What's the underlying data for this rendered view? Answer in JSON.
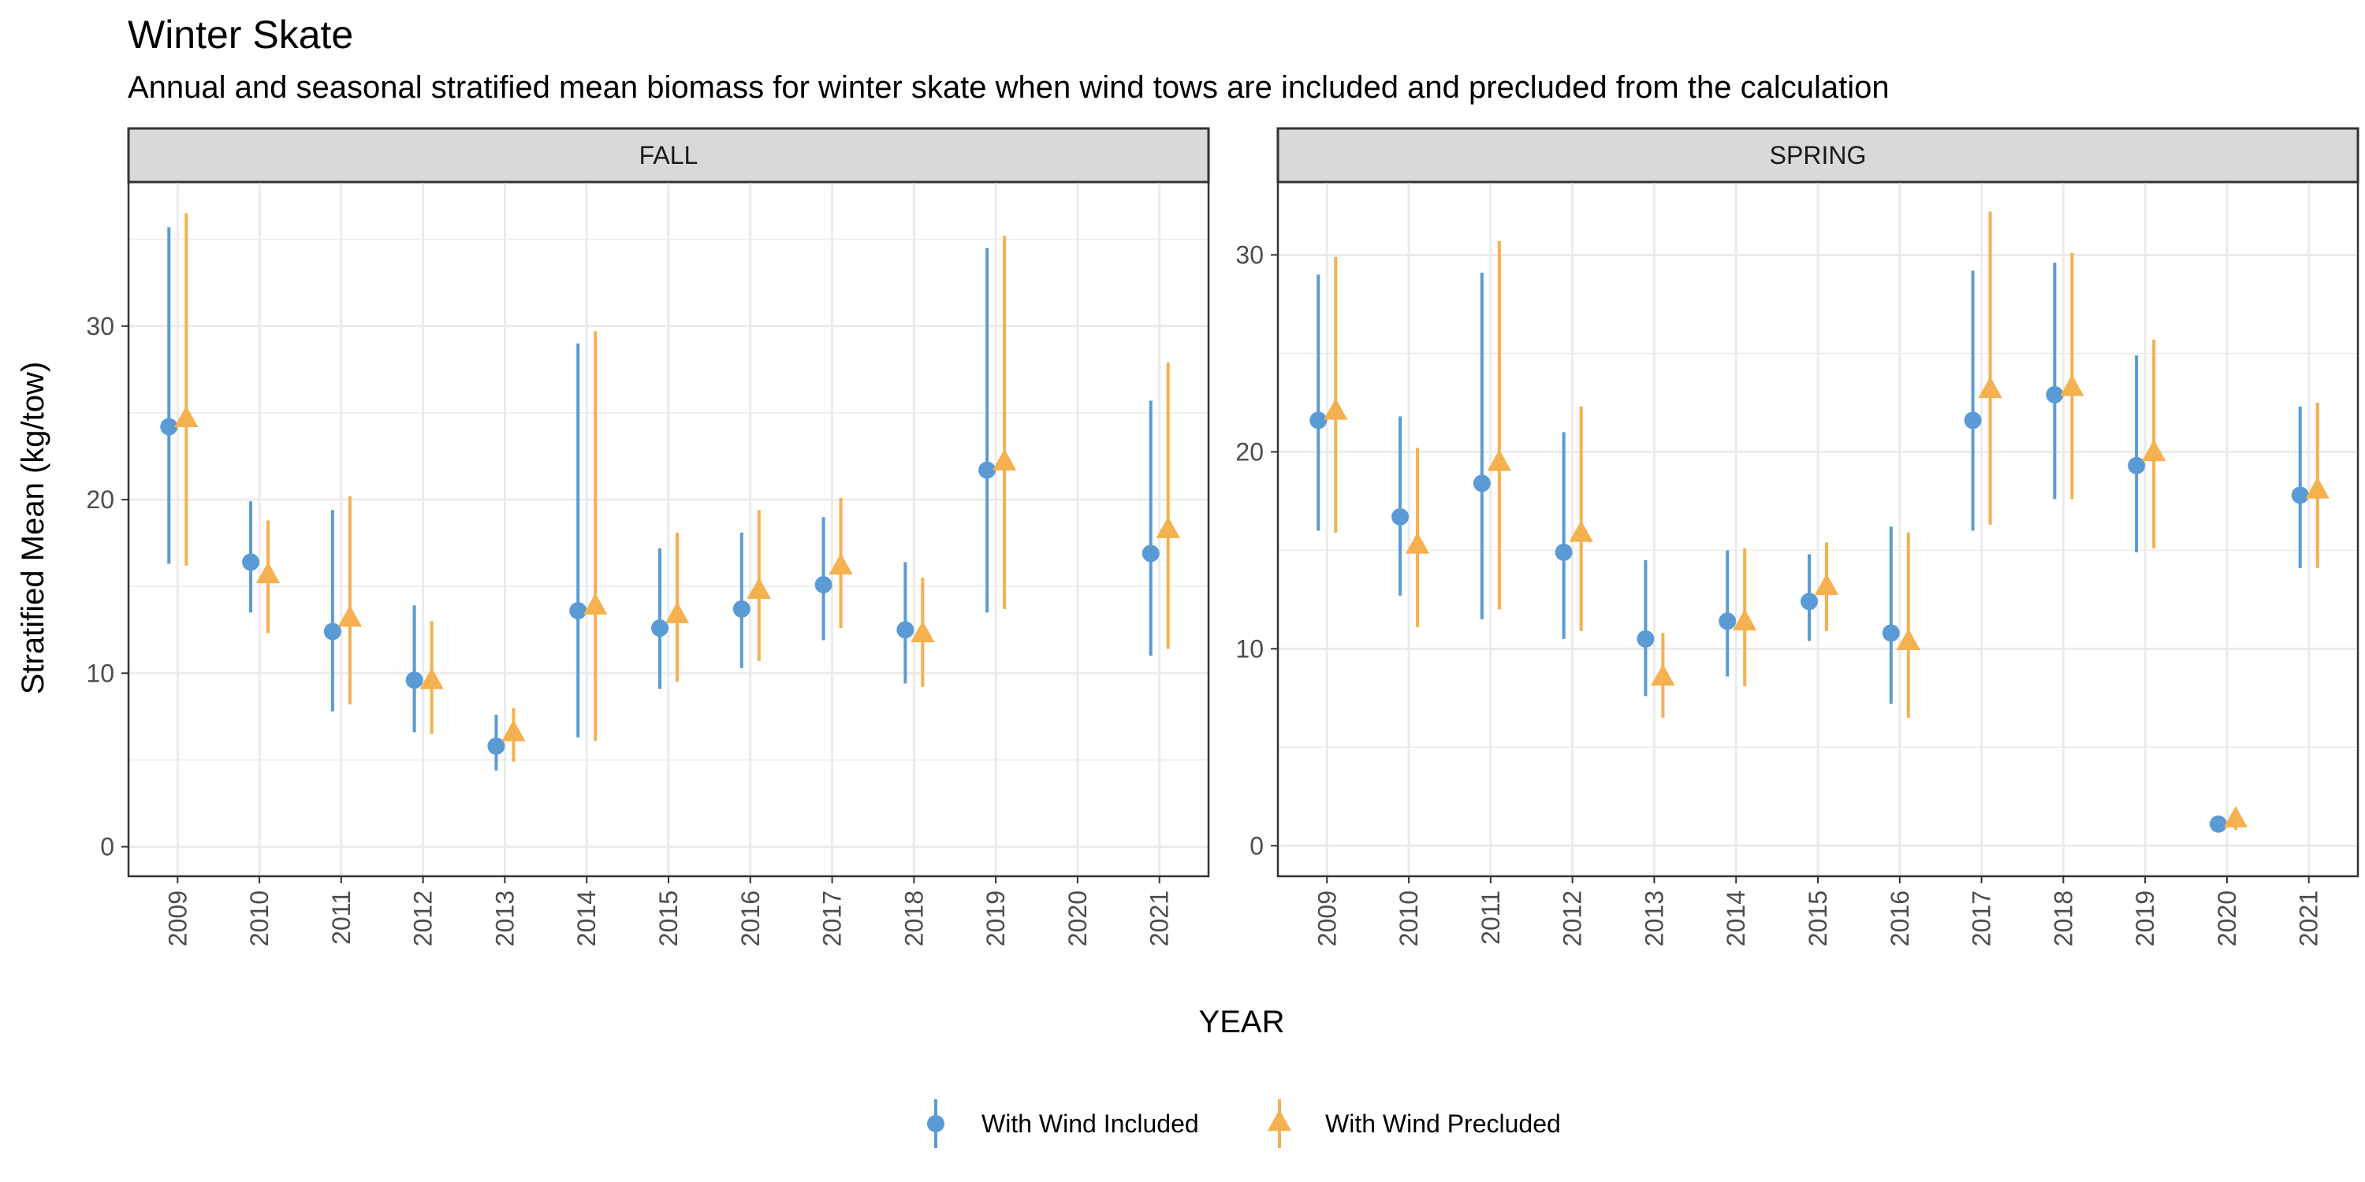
{
  "title": "Winter Skate",
  "subtitle": "Annual and seasonal stratified mean biomass for winter skate when wind tows are included and precluded from the calculation",
  "colors": {
    "included": "#5b9bd5",
    "precluded": "#f5b04f"
  },
  "chart_data": {
    "type": "scatter",
    "xlabel": "YEAR",
    "ylabel": "Stratified Mean (kg/tow)",
    "categories": [
      "2009",
      "2010",
      "2011",
      "2012",
      "2013",
      "2014",
      "2015",
      "2016",
      "2017",
      "2018",
      "2019",
      "2020",
      "2021"
    ],
    "legend": {
      "placement": "bottom",
      "entries": [
        {
          "name": "With Wind Included",
          "shape": "circle",
          "color": "#5b9bd5"
        },
        {
          "name": "With Wind Precluded",
          "shape": "triangle",
          "color": "#f5b04f"
        }
      ]
    },
    "grid": true,
    "panels": [
      {
        "name": "FALL",
        "ylim": [
          -1.7,
          38.3
        ],
        "yticks": [
          0,
          10,
          20,
          30
        ],
        "series": [
          {
            "name": "With Wind Included",
            "mean": [
              24.2,
              16.4,
              12.4,
              9.6,
              5.8,
              13.6,
              12.6,
              13.7,
              15.1,
              12.5,
              21.7,
              null,
              16.9
            ],
            "lower": [
              16.3,
              13.5,
              7.8,
              6.6,
              4.4,
              6.3,
              9.1,
              10.3,
              11.9,
              9.4,
              13.5,
              null,
              11.0
            ],
            "upper": [
              35.7,
              19.9,
              19.4,
              13.9,
              7.6,
              29.0,
              17.2,
              18.1,
              19.0,
              16.4,
              34.5,
              null,
              25.7
            ]
          },
          {
            "name": "With Wind Precluded",
            "mean": [
              24.6,
              15.6,
              13.1,
              9.5,
              6.5,
              13.8,
              13.3,
              14.7,
              16.1,
              12.2,
              22.1,
              null,
              18.2
            ],
            "lower": [
              16.2,
              12.3,
              8.2,
              6.5,
              4.9,
              6.1,
              9.5,
              10.7,
              12.6,
              9.2,
              13.7,
              null,
              11.4
            ],
            "upper": [
              36.5,
              18.8,
              20.2,
              13.0,
              8.0,
              29.7,
              18.1,
              19.4,
              20.1,
              15.5,
              35.2,
              null,
              27.9
            ]
          }
        ]
      },
      {
        "name": "SPRING",
        "ylim": [
          -1.55,
          33.7
        ],
        "yticks": [
          0,
          10,
          20,
          30
        ],
        "series": [
          {
            "name": "With Wind Included",
            "mean": [
              21.6,
              16.7,
              18.4,
              14.9,
              10.5,
              11.4,
              12.4,
              10.8,
              21.6,
              22.9,
              19.3,
              1.1,
              17.8
            ],
            "lower": [
              16.0,
              12.7,
              11.5,
              10.5,
              7.6,
              8.6,
              10.4,
              7.2,
              16.0,
              17.6,
              14.9,
              0.7,
              14.1
            ],
            "upper": [
              29.0,
              21.8,
              29.1,
              21.0,
              14.5,
              15.0,
              14.8,
              16.2,
              29.2,
              29.6,
              24.9,
              1.5,
              22.3
            ]
          },
          {
            "name": "With Wind Precluded",
            "mean": [
              22.0,
              15.2,
              19.4,
              15.8,
              8.5,
              11.3,
              13.1,
              10.3,
              23.1,
              23.2,
              19.9,
              1.3,
              18.0
            ],
            "lower": [
              15.9,
              11.1,
              12.0,
              10.9,
              6.5,
              8.1,
              10.9,
              6.5,
              16.3,
              17.6,
              15.1,
              0.8,
              14.1
            ],
            "upper": [
              29.9,
              20.2,
              30.7,
              22.3,
              10.8,
              15.1,
              15.4,
              15.9,
              32.2,
              30.1,
              25.7,
              1.9,
              22.5
            ]
          }
        ]
      }
    ]
  }
}
